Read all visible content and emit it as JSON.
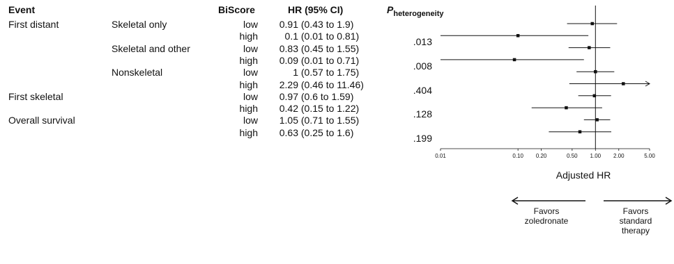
{
  "header": {
    "event": "Event",
    "biscore": "BiScore",
    "hr": "HR (95% CI)",
    "p_main": "P",
    "p_sub": "heterogeneity"
  },
  "rows": [
    {
      "event": "First distant",
      "subgroup": "Skeletal only",
      "biscore": "low",
      "hr": "0.91",
      "ci": "(0.43 to 1.9)",
      "p": ""
    },
    {
      "event": "",
      "subgroup": "",
      "biscore": "high",
      "hr": "0.1",
      "ci": "(0.01 to 0.81)",
      "p": ".013"
    },
    {
      "event": "",
      "subgroup": "Skeletal and other",
      "biscore": "low",
      "hr": "0.83",
      "ci": "(0.45 to 1.55)",
      "p": ""
    },
    {
      "event": "",
      "subgroup": "",
      "biscore": "high",
      "hr": "0.09",
      "ci": "(0.01 to 0.71)",
      "p": ".008"
    },
    {
      "event": "",
      "subgroup": "Nonskeletal",
      "biscore": "low",
      "hr": "1",
      "ci": "(0.57 to 1.75)",
      "p": ""
    },
    {
      "event": "",
      "subgroup": "",
      "biscore": "high",
      "hr": "2.29",
      "ci": "(0.46 to 11.46)",
      "p": ".404"
    },
    {
      "event": "First skeletal",
      "subgroup": "",
      "biscore": "low",
      "hr": "0.97",
      "ci": "(0.6 to 1.59)",
      "p": ""
    },
    {
      "event": "",
      "subgroup": "",
      "biscore": "high",
      "hr": "0.42",
      "ci": "(0.15 to 1.22)",
      "p": ".128"
    },
    {
      "event": "Overall survival",
      "subgroup": "",
      "biscore": "low",
      "hr": "1.05",
      "ci": "(0.71 to 1.55)",
      "p": ""
    },
    {
      "event": "",
      "subgroup": "",
      "biscore": "high",
      "hr": "0.63",
      "ci": "(0.25 to 1.6)",
      "p": ".199"
    }
  ],
  "chart_data": {
    "type": "forest",
    "xscale": "log",
    "xlim": [
      0.01,
      5
    ],
    "reference_line": 1,
    "xticks": [
      0.01,
      0.1,
      0.2,
      0.5,
      1,
      2,
      5
    ],
    "xtick_labels": [
      "0.01",
      "0.10",
      "0.20",
      "0.50",
      "1.00",
      "2.00",
      "5.00"
    ],
    "xlabel": "Adjusted HR",
    "points": [
      {
        "hr": 0.91,
        "lo": 0.43,
        "hi": 1.9
      },
      {
        "hr": 0.1,
        "lo": 0.01,
        "hi": 0.81
      },
      {
        "hr": 0.83,
        "lo": 0.45,
        "hi": 1.55
      },
      {
        "hr": 0.09,
        "lo": 0.01,
        "hi": 0.71
      },
      {
        "hr": 1,
        "lo": 0.57,
        "hi": 1.75
      },
      {
        "hr": 2.29,
        "lo": 0.46,
        "hi": 11.46
      },
      {
        "hr": 0.97,
        "lo": 0.6,
        "hi": 1.59
      },
      {
        "hr": 0.42,
        "lo": 0.15,
        "hi": 1.22
      },
      {
        "hr": 1.05,
        "lo": 0.71,
        "hi": 1.55
      },
      {
        "hr": 0.63,
        "lo": 0.25,
        "hi": 1.6
      }
    ],
    "favors_left": "Favors zoledronate",
    "favors_right": "Favors standard therapy"
  }
}
